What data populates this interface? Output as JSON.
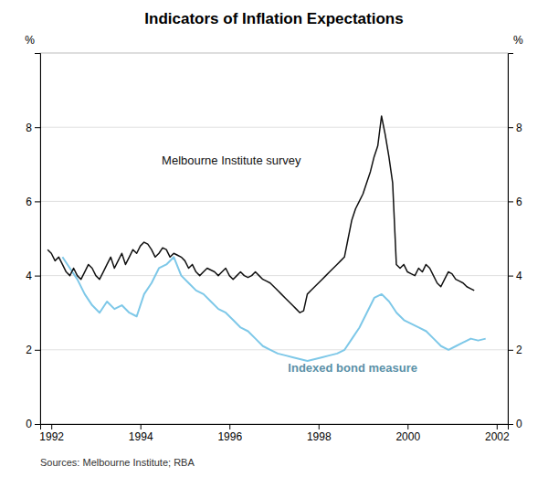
{
  "chart_data": {
    "type": "line",
    "title": "Indicators of Inflation Expectations",
    "source": "Sources: Melbourne Institute; RBA",
    "ylabel": "%",
    "y2label": "%",
    "xlim": [
      1991.75,
      2002.25
    ],
    "xticks": [
      1992,
      1994,
      1996,
      1998,
      2000,
      2002
    ],
    "ylim": [
      0,
      10
    ],
    "yticks": [
      0,
      2,
      4,
      6,
      8
    ],
    "y2lim": [
      0,
      10
    ],
    "y2ticks": [
      0,
      2,
      4,
      6,
      8
    ],
    "grid": true,
    "series": [
      {
        "name": "Melbourne Institute survey",
        "color": "#111111",
        "x": [
          1991.917,
          1992.0003,
          1992.0836,
          1992.1669,
          1992.2502,
          1992.3335,
          1992.4168,
          1992.5001,
          1992.5834,
          1992.6667,
          1992.75,
          1992.8333,
          1992.9166,
          1992.9999,
          1993.0832,
          1993.1665,
          1993.2498,
          1993.3331,
          1993.4164,
          1993.4997,
          1993.583,
          1993.6663,
          1993.7496,
          1993.8329,
          1993.9162,
          1993.9995,
          1994.0828,
          1994.1661,
          1994.2494,
          1994.3327,
          1994.416,
          1994.4993,
          1994.5826,
          1994.6659,
          1994.7492,
          1994.8325,
          1994.9158,
          1994.9991,
          1995.0824,
          1995.1657,
          1995.249,
          1995.3323,
          1995.4156,
          1995.4989,
          1995.5822,
          1995.6655,
          1995.7488,
          1995.8321,
          1995.9154,
          1995.9987,
          1996.082,
          1996.1653,
          1996.2486,
          1996.3319,
          1996.4152,
          1996.4985,
          1996.5818,
          1996.6651,
          1996.7484,
          1996.8317,
          1996.915,
          1996.9983,
          1997.0816,
          1997.1649,
          1997.2482,
          1997.3315,
          1997.4148,
          1997.4981,
          1997.5814,
          1997.6647,
          1997.748,
          1997.8313,
          1997.9146,
          1997.9979,
          1998.0812,
          1998.1645,
          1998.2478,
          1998.3311,
          1998.4144,
          1998.4977,
          1998.581,
          1998.6643,
          1998.7476,
          1998.8309,
          1998.9142,
          1998.9975,
          1999.0808,
          1999.1641,
          1999.2474,
          1999.3307,
          1999.414,
          1999.4973,
          1999.5806,
          1999.6639,
          1999.7472,
          1999.8305,
          1999.9138,
          1999.9971,
          2000.0804,
          2000.1637,
          2000.247,
          2000.3303,
          2000.4136,
          2000.4969,
          2000.5802,
          2000.6635,
          2000.7468,
          2000.8301,
          2000.9134,
          2000.9967,
          2001.08,
          2001.1633,
          2001.2466,
          2001.3299,
          2001.4132,
          2001.4965
        ],
        "values": [
          4.7,
          4.6,
          4.4,
          4.5,
          4.3,
          4.1,
          4.0,
          4.2,
          4.0,
          3.9,
          4.1,
          4.3,
          4.2,
          4.0,
          3.9,
          4.1,
          4.3,
          4.5,
          4.2,
          4.4,
          4.6,
          4.3,
          4.5,
          4.7,
          4.6,
          4.8,
          4.9,
          4.85,
          4.7,
          4.5,
          4.6,
          4.75,
          4.7,
          4.5,
          4.6,
          4.55,
          4.5,
          4.4,
          4.2,
          4.3,
          4.1,
          4.0,
          4.1,
          4.2,
          4.15,
          4.1,
          4.0,
          4.1,
          4.2,
          4.0,
          3.9,
          4.0,
          4.1,
          4.0,
          3.95,
          4.0,
          4.1,
          4.0,
          3.9,
          3.85,
          3.8,
          3.7,
          3.6,
          3.5,
          3.4,
          3.3,
          3.2,
          3.1,
          3.0,
          3.05,
          3.5,
          3.6,
          3.7,
          3.8,
          3.9,
          4.0,
          4.1,
          4.2,
          4.3,
          4.4,
          4.5,
          5.0,
          5.5,
          5.8,
          6.0,
          6.2,
          6.5,
          6.8,
          7.2,
          7.5,
          8.3,
          7.8,
          7.2,
          6.5,
          4.3,
          4.2,
          4.3,
          4.1,
          4.05,
          4.0,
          4.2,
          4.1,
          4.3,
          4.2,
          4.0,
          3.8,
          3.7,
          3.9,
          4.1,
          4.05,
          3.9,
          3.85,
          3.8,
          3.7,
          3.65,
          3.6
        ]
      },
      {
        "name": "Indexed bond measure",
        "color": "#7ec8e8",
        "x": [
          1992.25,
          1992.4167,
          1992.5834,
          1992.7501,
          1992.9168,
          1993.0835,
          1993.2502,
          1993.4169,
          1993.5836,
          1993.7503,
          1993.917,
          1994.0837,
          1994.2504,
          1994.4171,
          1994.5838,
          1994.7505,
          1994.9172,
          1995.0839,
          1995.2506,
          1995.4173,
          1995.584,
          1995.7507,
          1995.9174,
          1996.0841,
          1996.2508,
          1996.4175,
          1996.5842,
          1996.7509,
          1996.9176,
          1997.0843,
          1997.251,
          1997.4177,
          1997.5844,
          1997.7511,
          1997.9178,
          1998.0845,
          1998.2512,
          1998.4179,
          1998.5846,
          1998.7513,
          1998.918,
          1999.0847,
          1999.2514,
          1999.4181,
          1999.5848,
          1999.7515,
          1999.9182,
          2000.0849,
          2000.2516,
          2000.4183,
          2000.585,
          2000.7517,
          2000.9184,
          2001.0851,
          2001.2518,
          2001.4185,
          2001.5852,
          2001.7519
        ],
        "values": [
          4.5,
          4.2,
          3.9,
          3.5,
          3.2,
          3.0,
          3.3,
          3.1,
          3.2,
          3.0,
          2.9,
          3.5,
          3.8,
          4.2,
          4.3,
          4.5,
          4.0,
          3.8,
          3.6,
          3.5,
          3.3,
          3.1,
          3.0,
          2.8,
          2.6,
          2.5,
          2.3,
          2.1,
          2.0,
          1.9,
          1.85,
          1.8,
          1.75,
          1.7,
          1.75,
          1.8,
          1.85,
          1.9,
          2.0,
          2.3,
          2.6,
          3.0,
          3.4,
          3.5,
          3.3,
          3.0,
          2.8,
          2.7,
          2.6,
          2.5,
          2.3,
          2.1,
          2.0,
          2.1,
          2.2,
          2.3,
          2.25,
          2.3
        ]
      }
    ]
  }
}
